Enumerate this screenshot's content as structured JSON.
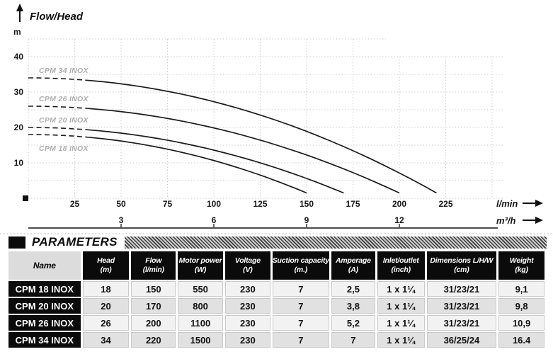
{
  "chart_data": {
    "type": "line",
    "title": "Flow/Head",
    "grid": true,
    "y_axis": {
      "label": "m",
      "ticks": [
        10,
        20,
        30,
        40
      ],
      "range": [
        0,
        45
      ]
    },
    "x_axis_primary": {
      "label": "l/min",
      "ticks": [
        25,
        50,
        75,
        100,
        125,
        150,
        175,
        200,
        225
      ],
      "range": [
        0,
        250
      ]
    },
    "x_axis_secondary": {
      "label": "m³/h",
      "ticks": [
        3,
        6,
        9,
        12
      ],
      "lmin_per_unit": 16.6667
    },
    "dashed_until_lmin": 33,
    "series": [
      {
        "name": "CPM 34 INOX",
        "shutoff_head_m": 34,
        "max_flow_lmin": 220,
        "head_at_max_flow_m": 1.5,
        "label_position": "above"
      },
      {
        "name": "CPM 26 INOX",
        "shutoff_head_m": 26,
        "max_flow_lmin": 200,
        "head_at_max_flow_m": 1.5,
        "label_position": "above"
      },
      {
        "name": "CPM 20 INOX",
        "shutoff_head_m": 20,
        "max_flow_lmin": 170,
        "head_at_max_flow_m": 1.5,
        "label_position": "above"
      },
      {
        "name": "CPM 18 INOX",
        "shutoff_head_m": 18,
        "max_flow_lmin": 150,
        "head_at_max_flow_m": 1.5,
        "label_position": "below"
      }
    ]
  },
  "parameters": {
    "section_title": "PARAMETERS",
    "columns": [
      {
        "label": "Name",
        "unit": ""
      },
      {
        "label": "Head",
        "unit": "(m)"
      },
      {
        "label": "Flow",
        "unit": "(l/min)"
      },
      {
        "label": "Motor power",
        "unit": "(W)"
      },
      {
        "label": "Voltage",
        "unit": "(V)"
      },
      {
        "label": "Suction capacity",
        "unit": "(m.)"
      },
      {
        "label": "Amperage",
        "unit": "(A)"
      },
      {
        "label": "Inlet/outlet",
        "unit": "(inch)"
      },
      {
        "label": "Dimensions L/H/W",
        "unit": "(cm)"
      },
      {
        "label": "Weight",
        "unit": "(kg)"
      }
    ],
    "rows": [
      {
        "name": "CPM 18 INOX",
        "values": [
          "18",
          "150",
          "550",
          "230",
          "7",
          "2,5",
          "1 x 1¼",
          "31/23/21",
          "9,1"
        ]
      },
      {
        "name": "CPM 20 INOX",
        "values": [
          "20",
          "170",
          "800",
          "230",
          "7",
          "3,8",
          "1 x 1¼",
          "31/23/21",
          "9,8"
        ]
      },
      {
        "name": "CPM 26 INOX",
        "values": [
          "26",
          "200",
          "1100",
          "230",
          "7",
          "5,2",
          "1 x 1¼",
          "31/23/21",
          "10,9"
        ]
      },
      {
        "name": "CPM 34 INOX",
        "values": [
          "34",
          "220",
          "1500",
          "230",
          "7",
          "7",
          "1 x 1¼",
          "36/25/24",
          "16.4"
        ]
      }
    ]
  }
}
